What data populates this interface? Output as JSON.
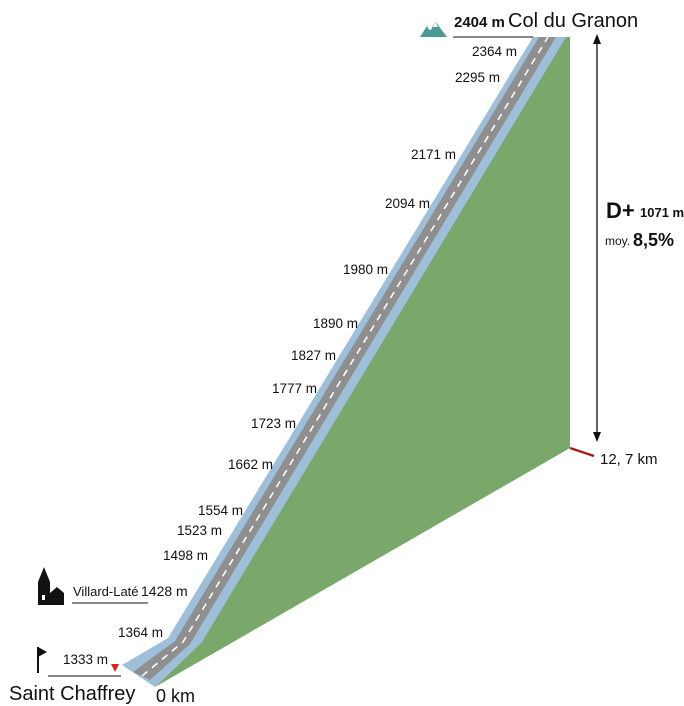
{
  "summit": {
    "altitude": "2404 m",
    "name": "Col du Granon"
  },
  "start": {
    "altitude": "1333 m",
    "name": "Saint Chaffrey",
    "distance": "0 km"
  },
  "village": {
    "name": "Villard-Laté",
    "altitude": "1428 m"
  },
  "end_distance": "12, 7 km",
  "elevation_gain": {
    "prefix": "D+",
    "value": "1071 m",
    "avg_label": "moy.",
    "avg_value": "8,5%"
  },
  "altitude_marks": [
    "2364 m",
    "2295 m",
    "2171 m",
    "2094 m",
    "1980 m",
    "1890 m",
    "1827 m",
    "1777 m",
    "1723 m",
    "1662 m",
    "1554 m",
    "1523 m",
    "1498 m",
    "1364 m"
  ],
  "colors": {
    "terrain": "#79a86a",
    "road_edge": "#9dbfd9",
    "asphalt": "#8f8f8f",
    "center_line": "#ffffff",
    "distance_tick": "#a31e1e",
    "start_marker": "#e02020",
    "mountain_icon": "#4a9a96"
  },
  "icons": [
    "mountain-icon",
    "church-icon",
    "flag-icon",
    "triangle-marker-icon"
  ]
}
